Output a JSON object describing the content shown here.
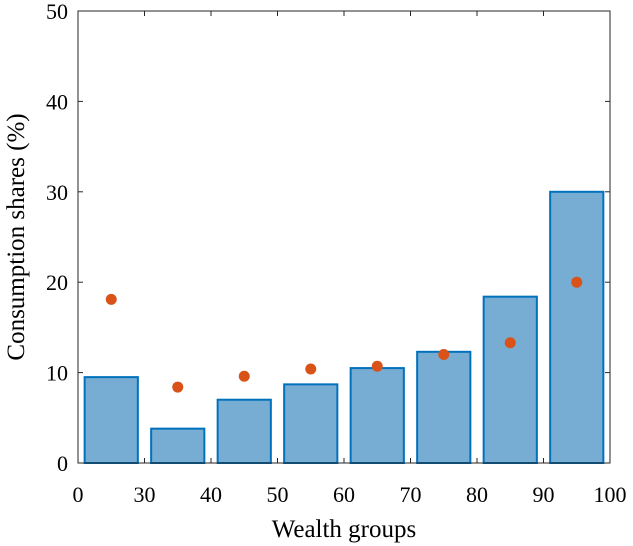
{
  "chart_data": {
    "type": "bar",
    "title": "",
    "xlabel": "Wealth groups",
    "ylabel": "Consumption shares (%)",
    "xlim": [
      0,
      100
    ],
    "ylim": [
      0,
      50
    ],
    "x_tick_labels": [
      "0",
      "30",
      "40",
      "50",
      "60",
      "70",
      "80",
      "90",
      "100"
    ],
    "y_ticks": [
      0,
      10,
      20,
      30,
      40,
      50
    ],
    "grid": false,
    "legend": "none",
    "categories": [
      "0-30",
      "30-40",
      "40-50",
      "50-60",
      "60-70",
      "70-80",
      "80-90",
      "90-100"
    ],
    "series": [
      {
        "kind": "bar",
        "values": [
          9.5,
          3.8,
          7.0,
          8.7,
          10.5,
          12.3,
          18.4,
          30.0
        ],
        "color": "#77acd3",
        "edge_color": "#0072bd"
      },
      {
        "kind": "scatter",
        "values": [
          18.1,
          8.4,
          9.6,
          10.4,
          10.7,
          12.0,
          13.3,
          20.0
        ],
        "color": "#d95319"
      }
    ]
  }
}
